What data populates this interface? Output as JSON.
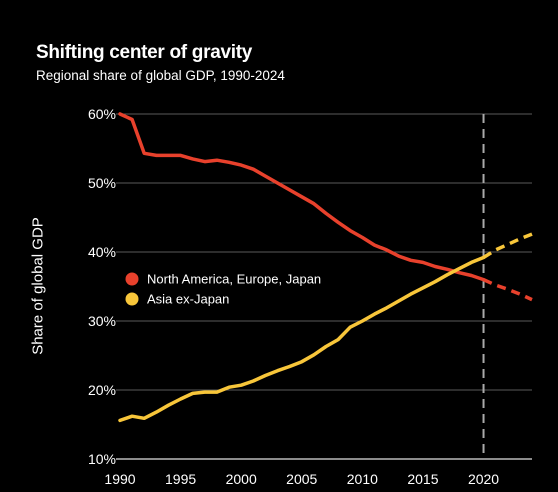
{
  "chart_data": {
    "type": "line",
    "title": "Shifting center of gravity",
    "subtitle": "Regional  share of global GDP, 1990-2024",
    "ylabel": "Share of global GDP",
    "xlabel": "",
    "xlim": [
      1990,
      2024
    ],
    "ylim": [
      10,
      60
    ],
    "x_ticks": [
      1990,
      1995,
      2000,
      2005,
      2010,
      2015,
      2020
    ],
    "x_tick_labels": [
      "1990",
      "1995",
      "2000",
      "2005",
      "2010",
      "2015",
      "2020"
    ],
    "y_ticks": [
      10,
      20,
      30,
      40,
      50,
      60
    ],
    "y_tick_labels": [
      "10%",
      "20%",
      "30%",
      "40%",
      "50%",
      "60%"
    ],
    "grid": true,
    "divider_year": 2020,
    "legend_position": "center-left",
    "series": [
      {
        "name": "North America, Europe, Japan",
        "color": "#e8412c",
        "x": [
          1990,
          1991,
          1992,
          1993,
          1994,
          1995,
          1996,
          1997,
          1998,
          1999,
          2000,
          2001,
          2002,
          2003,
          2004,
          2005,
          2006,
          2007,
          2008,
          2009,
          2010,
          2011,
          2012,
          2013,
          2014,
          2015,
          2016,
          2017,
          2018,
          2019,
          2020,
          2021,
          2022,
          2023,
          2024
        ],
        "values": [
          60,
          59.2,
          54.3,
          54,
          54,
          54,
          53.5,
          53.1,
          53.3,
          53,
          52.6,
          52,
          51,
          50,
          49,
          48,
          47,
          45.6,
          44.3,
          43.1,
          42.1,
          41,
          40.3,
          39.4,
          38.8,
          38.5,
          37.9,
          37.5,
          37,
          36.6,
          36,
          35.2,
          34.6,
          33.9,
          33.1
        ],
        "forecast_from": 2020
      },
      {
        "name": "Asia ex-Japan",
        "color": "#f8c63a",
        "x": [
          1990,
          1991,
          1992,
          1993,
          1994,
          1995,
          1996,
          1997,
          1998,
          1999,
          2000,
          2001,
          2002,
          2003,
          2004,
          2005,
          2006,
          2007,
          2008,
          2009,
          2010,
          2011,
          2012,
          2013,
          2014,
          2015,
          2016,
          2017,
          2018,
          2019,
          2020,
          2021,
          2022,
          2023,
          2024
        ],
        "values": [
          15.6,
          16.2,
          15.9,
          16.8,
          17.8,
          18.7,
          19.5,
          19.7,
          19.7,
          20.4,
          20.7,
          21.3,
          22.1,
          22.8,
          23.4,
          24.1,
          25.1,
          26.3,
          27.3,
          29.1,
          30,
          31,
          31.9,
          32.9,
          33.9,
          34.8,
          35.7,
          36.7,
          37.6,
          38.5,
          39.2,
          40.3,
          41.1,
          41.9,
          42.6
        ],
        "forecast_from": 2020
      }
    ]
  }
}
